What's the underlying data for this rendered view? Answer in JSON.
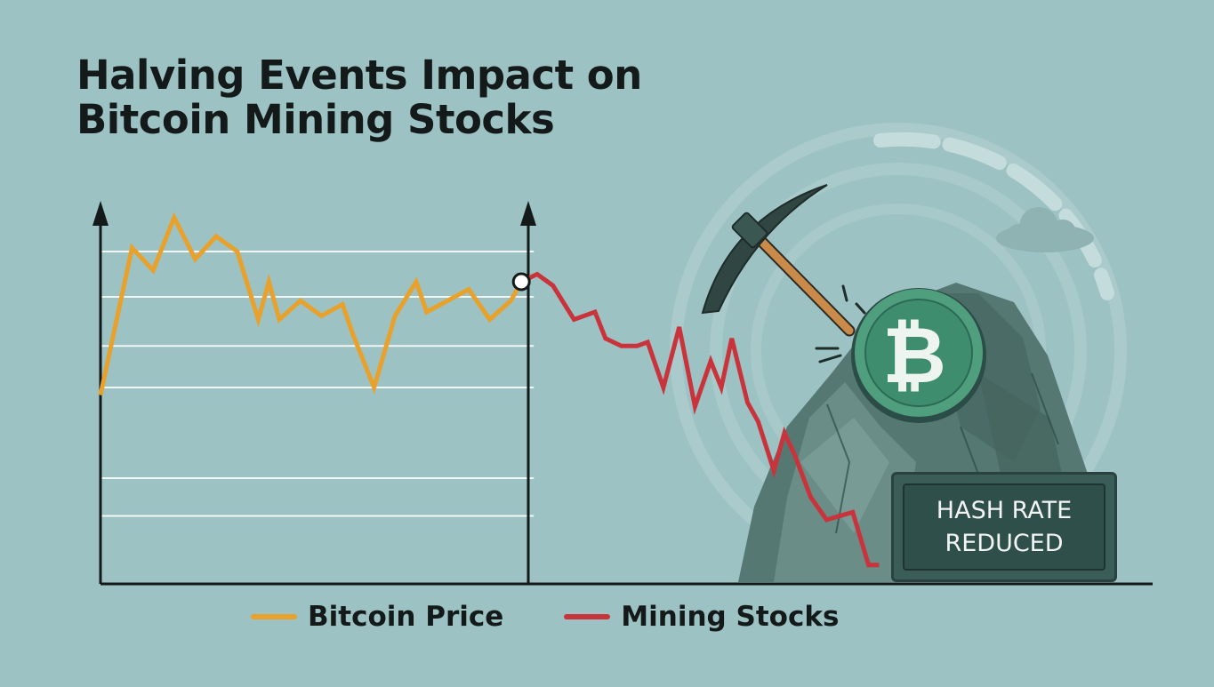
{
  "title": {
    "line1": "Halving Events Impact on",
    "line2": "Bitcoin Mining Stocks"
  },
  "colors": {
    "background": "#9dc2c3",
    "bitcoin_price": "#e8a12b",
    "mining_stocks": "#c9343c",
    "axis": "#141a1a",
    "grid": "#f2f6f5"
  },
  "annotation": {
    "line1": "HASH RATE",
    "line2": "REDUCED"
  },
  "icons": [
    "bitcoin-coin-icon",
    "pickaxe-icon",
    "rock-icon",
    "cloud-icon"
  ],
  "chart_data": {
    "type": "line",
    "title": "Halving Events Impact on Bitcoin Mining Stocks",
    "xlabel": "",
    "ylabel": "",
    "grid": true,
    "legend_position": "bottom",
    "x_range": [
      0,
      100
    ],
    "ylim": [
      0,
      100
    ],
    "halving_marker_x": 40,
    "series": [
      {
        "name": "Bitcoin Price",
        "color": "#e8a12b",
        "x": [
          0,
          3,
          5,
          7,
          9,
          11,
          13,
          15,
          16,
          17,
          19,
          21,
          23,
          24,
          26,
          28,
          30,
          31,
          33,
          35,
          37,
          39,
          40
        ],
        "y": [
          50,
          89,
          83,
          97,
          86,
          92,
          88,
          70,
          80,
          70,
          75,
          71,
          74,
          66,
          52,
          71,
          80,
          72,
          75,
          78,
          70,
          75,
          80
        ]
      },
      {
        "name": "Mining Stocks",
        "color": "#c9343c",
        "x": [
          40,
          41.5,
          43,
          45,
          47,
          48,
          49.5,
          51,
          52,
          53.5,
          55,
          56.5,
          58,
          59,
          60,
          61.5,
          62.5,
          64,
          65,
          66,
          67.5,
          69,
          71.5,
          73,
          74
        ],
        "y": [
          80,
          82,
          79,
          70,
          72,
          65,
          63,
          63,
          64,
          52,
          68,
          47,
          59,
          52,
          65,
          48,
          43,
          30,
          40,
          34,
          23,
          17,
          19,
          5,
          5
        ]
      }
    ]
  }
}
